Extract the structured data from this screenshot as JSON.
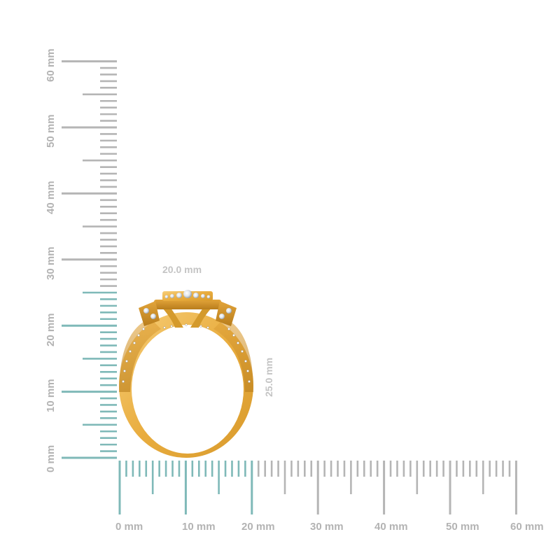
{
  "colors": {
    "ruler_inactive": "#b5b5b5",
    "ruler_active": "#7fb9b8",
    "label": "#b3b3b3",
    "gold_light": "#f4c46a",
    "gold_dark": "#c98a1e",
    "background": "#ffffff"
  },
  "vertical_ruler": {
    "unit": "mm",
    "labels": [
      "0 mm",
      "10 mm",
      "20 mm",
      "30 mm",
      "40 mm",
      "50 mm",
      "60 mm"
    ],
    "active_range_mm": [
      0,
      25
    ]
  },
  "horizontal_ruler": {
    "unit": "mm",
    "labels": [
      "0 mm",
      "10 mm",
      "20 mm",
      "30 mm",
      "40 mm",
      "50 mm",
      "60 mm"
    ],
    "active_range_mm": [
      0,
      20
    ]
  },
  "dimensions": {
    "width_label": "20.0 mm",
    "height_label": "25.0 mm"
  },
  "product": {
    "image_alt": "Yellow gold halo diamond ring, side profile"
  }
}
